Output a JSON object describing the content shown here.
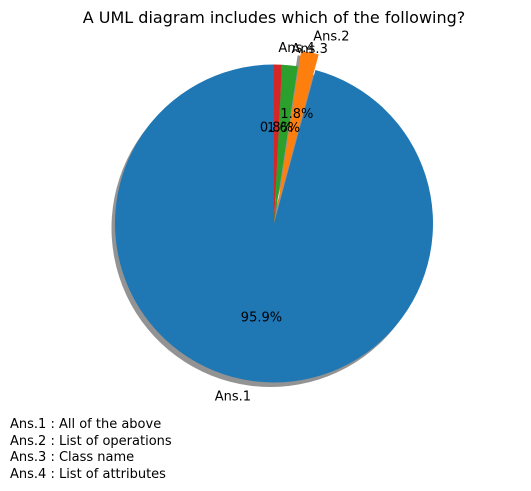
{
  "chart_data": {
    "type": "pie",
    "title": "A UML diagram includes which of the following?",
    "labels": [
      "Ans.1",
      "Ans.2",
      "Ans.3",
      "Ans.4"
    ],
    "values": [
      95.9,
      1.8,
      1.6,
      0.8
    ],
    "pct_labels": [
      "95.9%",
      "1.8%",
      "1.6%",
      "0.8%"
    ],
    "colors": [
      "#1f77b4",
      "#ff7f0e",
      "#2ca02c",
      "#d62728"
    ],
    "exploded": [
      false,
      true,
      false,
      false
    ],
    "shadow": true,
    "legend_text": [
      "Ans.1 : All of the above",
      "Ans.2 : List of operations",
      "Ans.3 : Class name",
      "Ans.4 : List of attributes"
    ]
  }
}
